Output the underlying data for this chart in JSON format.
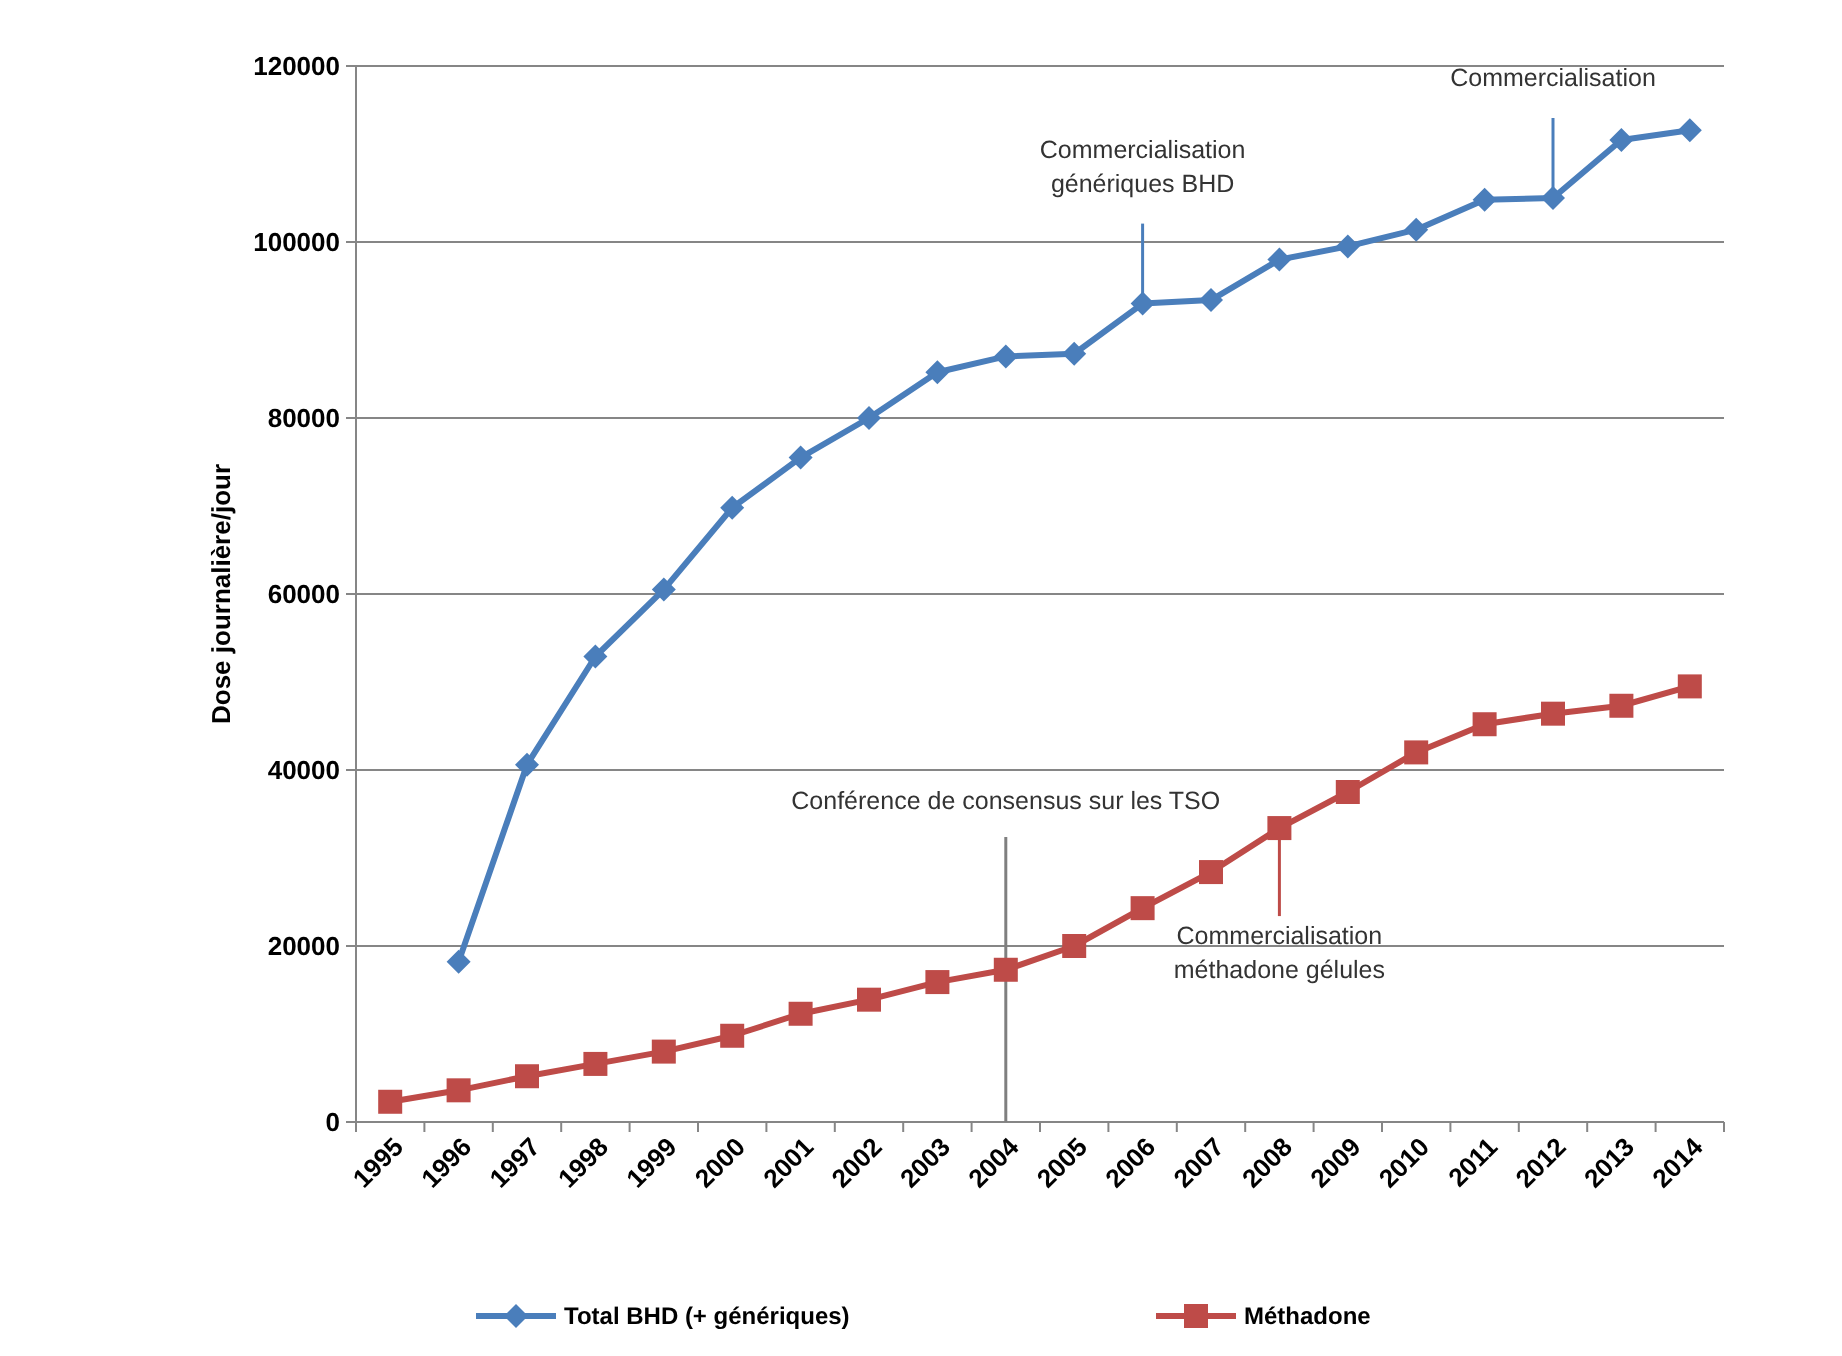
{
  "chart_data": {
    "type": "line",
    "ylabel": "Dose journalière/jour",
    "categories": [
      "1995",
      "1996",
      "1997",
      "1998",
      "1999",
      "2000",
      "2001",
      "2002",
      "2003",
      "2004",
      "2005",
      "2006",
      "2007",
      "2008",
      "2009",
      "2010",
      "2011",
      "2012",
      "2013",
      "2014"
    ],
    "series": [
      {
        "name": "Total BHD (+ génériques)",
        "color": "#4a7ebb",
        "marker": "diamond",
        "values": [
          null,
          18200,
          40600,
          52900,
          60500,
          69800,
          75500,
          80000,
          85200,
          87000,
          87300,
          93000,
          93400,
          98000,
          99500,
          101400,
          104800,
          105000,
          111600,
          112700
        ]
      },
      {
        "name": "Méthadone",
        "color": "#be4b48",
        "marker": "square",
        "values": [
          2300,
          3600,
          5200,
          6600,
          8000,
          9800,
          12300,
          13900,
          15900,
          17300,
          20000,
          24300,
          28400,
          33400,
          37500,
          42000,
          45200,
          46400,
          47300,
          49500
        ]
      }
    ],
    "ref_lines": [
      {
        "axis": "x",
        "value": "2004",
        "label": "Conférence de consensus sur les TSO",
        "color": "#7f7f7f"
      }
    ],
    "ylim": [
      0,
      120000
    ],
    "yticks": [
      0,
      20000,
      40000,
      60000,
      80000,
      100000,
      120000
    ],
    "grid": "y",
    "legend": "bottom",
    "annotations": [
      {
        "text": "Commercialisation\ngénériques BHD",
        "x": "2006",
        "y": 93000
      },
      {
        "text": "Commercialisation",
        "x": "2012",
        "y": 105000
      },
      {
        "text": "Commercialisation\nméthadone gélules",
        "x": "2008",
        "y": 33400
      }
    ]
  }
}
